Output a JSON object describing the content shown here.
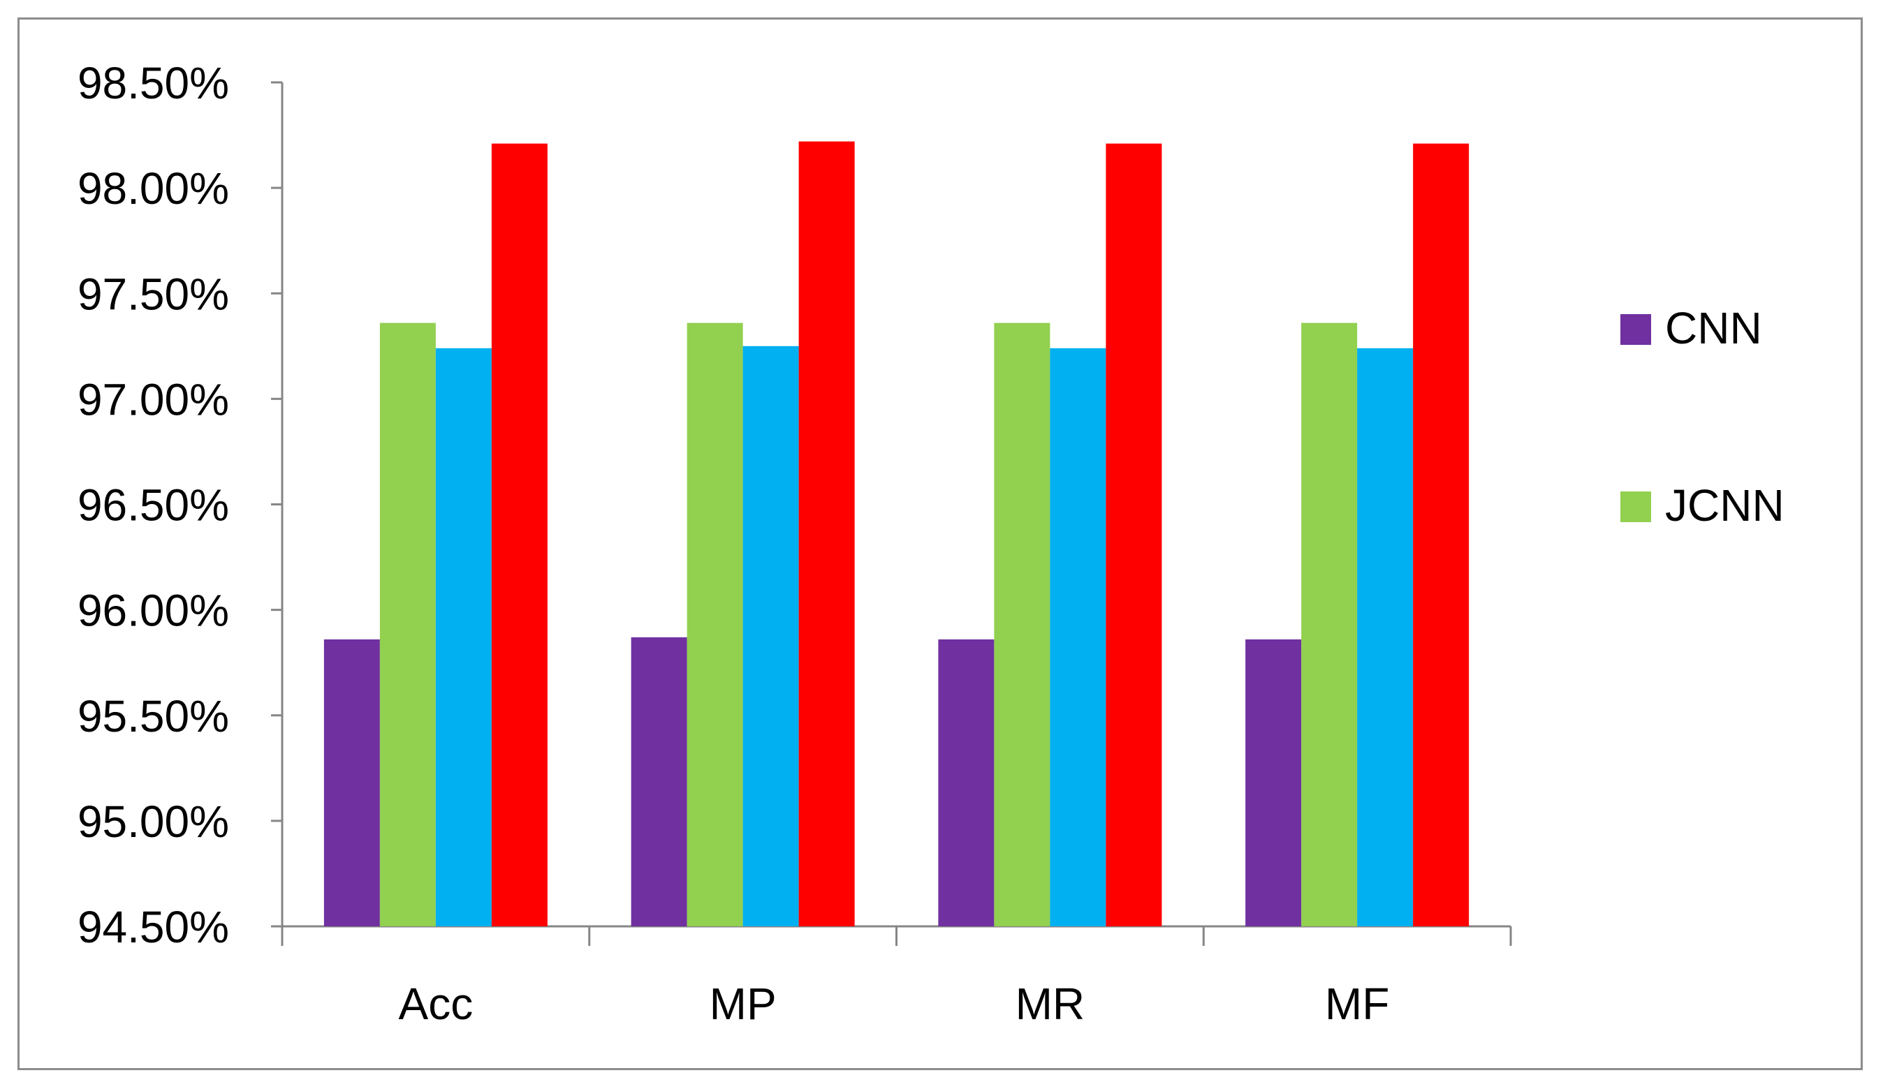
{
  "chart_data": {
    "type": "bar",
    "title": "",
    "xlabel": "",
    "ylabel": "",
    "categories": [
      "Acc",
      "MP",
      "MR",
      "MF"
    ],
    "ylim": [
      94.5,
      98.5
    ],
    "ytick_values": [
      94.5,
      95.0,
      95.5,
      96.0,
      96.5,
      97.0,
      97.5,
      98.0,
      98.5
    ],
    "ytick_labels": [
      "94.50%",
      "95.00%",
      "95.50%",
      "96.00%",
      "96.50%",
      "97.00%",
      "97.50%",
      "98.00%",
      "98.50%"
    ],
    "grid": false,
    "legend_position": "right",
    "series": [
      {
        "name": "CNN",
        "color": "#7030a0",
        "values": [
          95.86,
          95.87,
          95.86,
          95.86
        ]
      },
      {
        "name": "JCNN",
        "color": "#92d050",
        "values": [
          97.36,
          97.36,
          97.36,
          97.36
        ]
      },
      {
        "name": "",
        "color": "#00b0f0",
        "values": [
          97.24,
          97.25,
          97.24,
          97.24
        ]
      },
      {
        "name": "",
        "color": "#ff0000",
        "values": [
          98.21,
          98.22,
          98.21,
          98.21
        ]
      }
    ]
  }
}
